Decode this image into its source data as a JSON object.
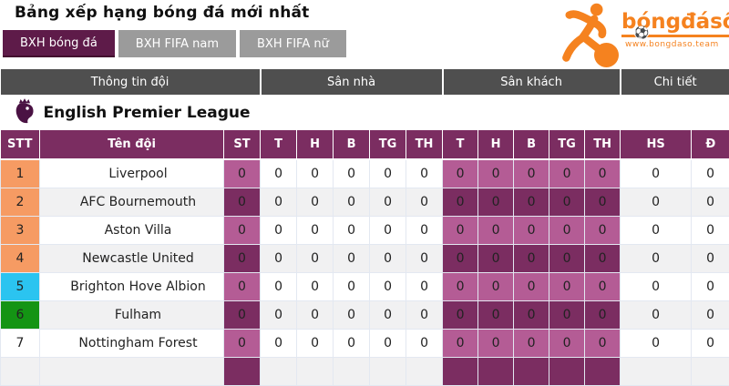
{
  "page": {
    "title": "Bảng xếp hạng bóng đá mới nhất"
  },
  "tabs": [
    {
      "label": "BXH bóng đá",
      "active": true
    },
    {
      "label": "BXH FIFA nam",
      "active": false
    },
    {
      "label": "BXH FIFA nữ",
      "active": false
    }
  ],
  "logo": {
    "brand": "bóngđásố",
    "website": "www.bongdaso.team",
    "icons": [
      "soccer-player-icon",
      "soccer-ball-icon"
    ],
    "color": "#f5821f"
  },
  "table": {
    "group_headers": [
      {
        "label": "Thông tin đội",
        "span": 3
      },
      {
        "label": "Sân nhà",
        "span": 5
      },
      {
        "label": "Sân khách",
        "span": 5
      },
      {
        "label": "Chi tiết",
        "span": 2
      }
    ],
    "columns": [
      "STT",
      "Tên đội",
      "ST",
      "T",
      "H",
      "B",
      "TG",
      "TH",
      "T",
      "H",
      "B",
      "TG",
      "TH",
      "HS",
      "Đ"
    ],
    "league": {
      "name": "English Premier League",
      "icon": "premier-league-lion-icon"
    },
    "rows": [
      {
        "pos": "1",
        "pos_color": "orange",
        "team": "Liverpool",
        "st": "0",
        "home": [
          "0",
          "0",
          "0",
          "0",
          "0"
        ],
        "away": [
          "0",
          "0",
          "0",
          "0",
          "0"
        ],
        "hs": "0",
        "d": "0"
      },
      {
        "pos": "2",
        "pos_color": "orange",
        "team": "AFC Bournemouth",
        "st": "0",
        "home": [
          "0",
          "0",
          "0",
          "0",
          "0"
        ],
        "away": [
          "0",
          "0",
          "0",
          "0",
          "0"
        ],
        "hs": "0",
        "d": "0"
      },
      {
        "pos": "3",
        "pos_color": "orange",
        "team": "Aston Villa",
        "st": "0",
        "home": [
          "0",
          "0",
          "0",
          "0",
          "0"
        ],
        "away": [
          "0",
          "0",
          "0",
          "0",
          "0"
        ],
        "hs": "0",
        "d": "0"
      },
      {
        "pos": "4",
        "pos_color": "orange",
        "team": "Newcastle United",
        "st": "0",
        "home": [
          "0",
          "0",
          "0",
          "0",
          "0"
        ],
        "away": [
          "0",
          "0",
          "0",
          "0",
          "0"
        ],
        "hs": "0",
        "d": "0"
      },
      {
        "pos": "5",
        "pos_color": "cyan",
        "team": "Brighton Hove Albion",
        "st": "0",
        "home": [
          "0",
          "0",
          "0",
          "0",
          "0"
        ],
        "away": [
          "0",
          "0",
          "0",
          "0",
          "0"
        ],
        "hs": "0",
        "d": "0"
      },
      {
        "pos": "6",
        "pos_color": "green",
        "team": "Fulham",
        "st": "0",
        "home": [
          "0",
          "0",
          "0",
          "0",
          "0"
        ],
        "away": [
          "0",
          "0",
          "0",
          "0",
          "0"
        ],
        "hs": "0",
        "d": "0"
      },
      {
        "pos": "7",
        "pos_color": "none",
        "team": "Nottingham Forest",
        "st": "0",
        "home": [
          "0",
          "0",
          "0",
          "0",
          "0"
        ],
        "away": [
          "0",
          "0",
          "0",
          "0",
          "0"
        ],
        "hs": "0",
        "d": "0"
      }
    ],
    "partial_row_visible": true,
    "colors": {
      "group_header_bg": "#4f4f4f",
      "column_header_bg": "#7b2d61",
      "stat_purple_light": "#b45c95",
      "stat_purple_dark": "#7b2d61",
      "pos_orange": "#f69b63",
      "pos_cyan": "#2bc4f0",
      "pos_green": "#149414",
      "active_tab": "#5e1b49",
      "inactive_tab": "#9b9b9b",
      "brand_orange": "#f5821f"
    }
  }
}
